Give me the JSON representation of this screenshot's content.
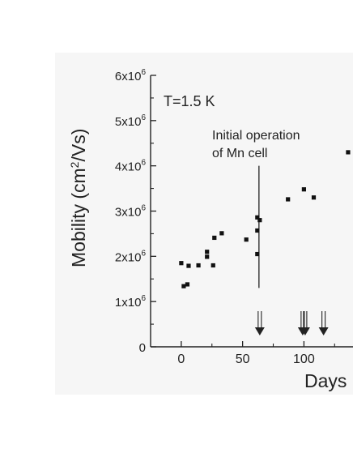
{
  "chart_data": {
    "type": "scatter",
    "title": "",
    "xlabel": "Days",
    "ylabel": "Mobility (cm²/Vs)",
    "xlim": [
      -25,
      140
    ],
    "ylim": [
      0,
      6000000
    ],
    "x_ticks": [
      {
        "value": 0,
        "label": "0"
      },
      {
        "value": 50,
        "label": "50"
      },
      {
        "value": 100,
        "label": "100"
      }
    ],
    "y_ticks": [
      {
        "value": 0,
        "label": "0",
        "base": "0",
        "exp": ""
      },
      {
        "value": 1000000,
        "label": "1x10^6",
        "base": "1x10",
        "exp": "6"
      },
      {
        "value": 2000000,
        "label": "2x10^6",
        "base": "2x10",
        "exp": "6"
      },
      {
        "value": 3000000,
        "label": "3x10^6",
        "base": "3x10",
        "exp": "6"
      },
      {
        "value": 4000000,
        "label": "4x10^6",
        "base": "4x10",
        "exp": "6"
      },
      {
        "value": 5000000,
        "label": "5x10^6",
        "base": "5x10",
        "exp": "6"
      },
      {
        "value": 6000000,
        "label": "6x10^6",
        "base": "6x10",
        "exp": "6"
      }
    ],
    "series": [
      {
        "points": [
          {
            "x": 0,
            "y": 1850000
          },
          {
            "x": 2,
            "y": 1340000
          },
          {
            "x": 5,
            "y": 1380000
          },
          {
            "x": 6,
            "y": 1790000
          },
          {
            "x": 14,
            "y": 1800000
          },
          {
            "x": 21,
            "y": 1990000
          },
          {
            "x": 21,
            "y": 2100000
          },
          {
            "x": 26,
            "y": 1800000
          },
          {
            "x": 27,
            "y": 2410000
          },
          {
            "x": 33,
            "y": 2510000
          },
          {
            "x": 53,
            "y": 2370000
          },
          {
            "x": 62,
            "y": 2050000
          },
          {
            "x": 62,
            "y": 2570000
          },
          {
            "x": 62,
            "y": 2860000
          },
          {
            "x": 64,
            "y": 2800000
          },
          {
            "x": 87,
            "y": 3260000
          },
          {
            "x": 100,
            "y": 3480000
          },
          {
            "x": 108,
            "y": 3300000
          },
          {
            "x": 136,
            "y": 4300000
          }
        ]
      }
    ],
    "annotations": {
      "temperature": "T=1.5 K",
      "note_line1": "Initial operation",
      "note_line2": "of Mn cell",
      "note_x": 64,
      "note_y_range": [
        1300000,
        4000000
      ],
      "arrows_x": [
        64,
        99,
        101,
        116
      ]
    },
    "grid": false,
    "legend": "none"
  }
}
